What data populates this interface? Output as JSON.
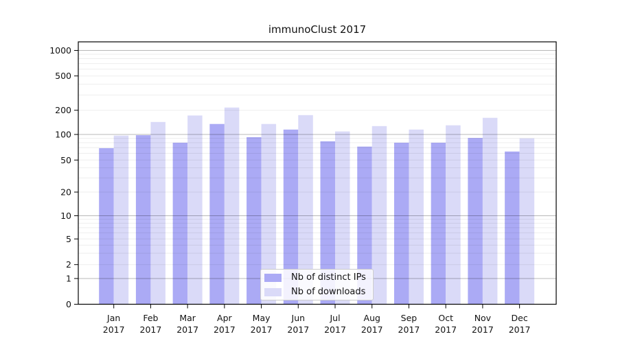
{
  "chart_data": {
    "type": "bar",
    "title": "immunoClust 2017",
    "xlabel": "",
    "ylabel": "",
    "year": "2017",
    "categories": [
      "Jan",
      "Feb",
      "Mar",
      "Apr",
      "May",
      "Jun",
      "Jul",
      "Aug",
      "Sep",
      "Oct",
      "Nov",
      "Dec"
    ],
    "series": [
      {
        "name": "Nb of distinct IPs",
        "color": "#abaaf5",
        "values": [
          69,
          98,
          80,
          135,
          93,
          115,
          83,
          72,
          80,
          80,
          91,
          63
        ]
      },
      {
        "name": "Nb of downloads",
        "color": "#dadaf8",
        "values": [
          97,
          143,
          172,
          215,
          135,
          174,
          109,
          127,
          115,
          130,
          161,
          90
        ]
      }
    ],
    "yticks": [
      0,
      1,
      2,
      5,
      10,
      20,
      50,
      100,
      200,
      500,
      1000
    ],
    "yscale": "log-like (linear below 1)",
    "ylim": [
      0,
      1260
    ],
    "grid": true,
    "legend_position": "inside lower center"
  }
}
